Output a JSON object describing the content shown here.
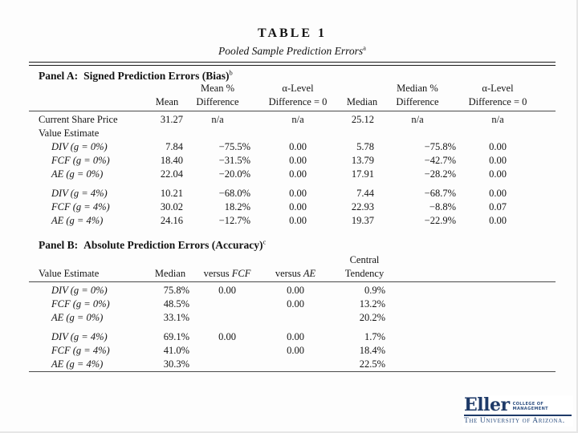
{
  "slide": {
    "title": "TABLE 1",
    "subtitle": "Pooled Sample Prediction Errors",
    "subtitle_superscript": "a"
  },
  "panel_a": {
    "heading_prefix": "Panel A:",
    "heading_text": "Signed Prediction Errors (Bias)",
    "heading_superscript": "b",
    "columns": {
      "top": [
        "",
        "",
        "Mean %",
        "α-Level",
        "",
        "Median %",
        "α-Level"
      ],
      "bottom": [
        "",
        "Mean",
        "Difference",
        "Difference = 0",
        "Median",
        "Difference",
        "Difference = 0"
      ]
    },
    "rows": [
      {
        "label": "Current Share Price",
        "indent": false,
        "cells": [
          "31.27",
          "n/a",
          "n/a",
          "25.12",
          "n/a",
          "n/a"
        ]
      },
      {
        "label": "Value Estimate",
        "indent": false,
        "cells": [
          "",
          "",
          "",
          "",
          "",
          ""
        ]
      },
      {
        "label": "DIV (g = 0%)",
        "indent": true,
        "cells": [
          "7.84",
          "−75.5%",
          "0.00",
          "5.78",
          "−75.8%",
          "0.00"
        ]
      },
      {
        "label": "FCF (g = 0%)",
        "indent": true,
        "cells": [
          "18.40",
          "−31.5%",
          "0.00",
          "13.79",
          "−42.7%",
          "0.00"
        ]
      },
      {
        "label": "AE (g = 0%)",
        "indent": true,
        "cells": [
          "22.04",
          "−20.0%",
          "0.00",
          "17.91",
          "−28.2%",
          "0.00"
        ]
      },
      {
        "label": "DIV (g = 4%)",
        "indent": true,
        "group_start": true,
        "cells": [
          "10.21",
          "−68.0%",
          "0.00",
          "7.44",
          "−68.7%",
          "0.00"
        ]
      },
      {
        "label": "FCF (g = 4%)",
        "indent": true,
        "cells": [
          "30.02",
          "18.2%",
          "0.00",
          "22.93",
          "−8.8%",
          "0.07"
        ]
      },
      {
        "label": "AE (g = 4%)",
        "indent": true,
        "cells": [
          "24.16",
          "−12.7%",
          "0.00",
          "19.37",
          "−22.9%",
          "0.00"
        ]
      }
    ]
  },
  "panel_b": {
    "heading_prefix": "Panel B:",
    "heading_text": "Absolute Prediction Errors (Accuracy)",
    "heading_superscript": "c",
    "columns": {
      "central": "Central",
      "value_estimate": "Value Estimate",
      "median": "Median",
      "versus": "versus",
      "fcf": "FCF",
      "ae": "AE",
      "tendency": "Tendency"
    },
    "rows": [
      {
        "label": "DIV (g = 0%)",
        "indent": true,
        "cells": [
          "75.8%",
          "0.00",
          "0.00",
          "0.9%"
        ]
      },
      {
        "label": "FCF (g = 0%)",
        "indent": true,
        "cells": [
          "48.5%",
          "",
          "0.00",
          "13.2%"
        ]
      },
      {
        "label": "AE (g = 0%)",
        "indent": true,
        "cells": [
          "33.1%",
          "",
          "",
          "20.2%"
        ]
      },
      {
        "label": "DIV (g = 4%)",
        "indent": true,
        "group_start": true,
        "cells": [
          "69.1%",
          "0.00",
          "0.00",
          "1.7%"
        ]
      },
      {
        "label": "FCF (g = 4%)",
        "indent": true,
        "cells": [
          "41.0%",
          "",
          "0.00",
          "18.4%"
        ]
      },
      {
        "label": "AE (g = 4%)",
        "indent": true,
        "cells": [
          "30.3%",
          "",
          "",
          "22.5%"
        ]
      }
    ]
  },
  "logo": {
    "brand": "Eller",
    "college_line1": "COLLEGE OF",
    "college_line2": "MANAGEMENT",
    "institution": "The University of Arizona."
  },
  "colors": {
    "navy": "#1e3a68",
    "rule_dark": "#1a1a1a",
    "rule_gray": "#4a4a4a",
    "text": "#141414"
  }
}
